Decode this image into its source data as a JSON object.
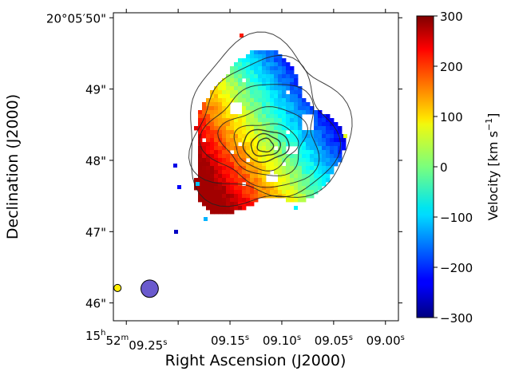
{
  "chart_data": {
    "type": "heatmap",
    "title": "",
    "xlabel": "Right Ascension (J2000)",
    "ylabel": "Declination (J2000)",
    "x_tick_labels": [
      {
        "value": 9.25,
        "main": "15",
        "sup1": "h",
        "mid": "52",
        "sup2": "m",
        "tail": "09.25",
        "sup3": "s"
      },
      {
        "value": 9.15,
        "main": "",
        "sup1": "",
        "mid": "",
        "sup2": "",
        "tail": "09.15",
        "sup3": "s"
      },
      {
        "value": 9.1,
        "main": "",
        "sup1": "",
        "mid": "",
        "sup2": "",
        "tail": "09.10",
        "sup3": "s"
      },
      {
        "value": 9.05,
        "main": "",
        "sup1": "",
        "mid": "",
        "sup2": "",
        "tail": "09.05",
        "sup3": "s"
      },
      {
        "value": 9.0,
        "main": "",
        "sup1": "",
        "mid": "",
        "sup2": "",
        "tail": "09.00",
        "sup3": "s"
      }
    ],
    "x_minor_ticks": [
      9.2
    ],
    "y_tick_labels": [
      {
        "value": 50,
        "text": "20°05′50\""
      },
      {
        "value": 49,
        "text": "49\""
      },
      {
        "value": 48,
        "text": "48\""
      },
      {
        "value": 47,
        "text": "47\""
      },
      {
        "value": 46,
        "text": "46\""
      }
    ],
    "xlim": [
      9.2625,
      8.9875
    ],
    "ylim": [
      45.75,
      50.07
    ],
    "colorbar": {
      "label_main": "Velocity [km s",
      "label_sup": "−1",
      "label_close": "]",
      "vmin": -300,
      "vmax": 300,
      "ticks": [
        {
          "value": 300,
          "text": "300"
        },
        {
          "value": 200,
          "text": "200"
        },
        {
          "value": 100,
          "text": "100"
        },
        {
          "value": 0,
          "text": "0"
        },
        {
          "value": -100,
          "text": "−100"
        },
        {
          "value": -200,
          "text": "−200"
        },
        {
          "value": -300,
          "text": "−300"
        }
      ],
      "colormap": "jet"
    },
    "beams": [
      {
        "name": "yellow-beam",
        "ra": 9.2585,
        "dec": 46.21,
        "ra_radius": 0.0035,
        "color": "#ffee00"
      },
      {
        "name": "purple-beam",
        "ra": 9.2275,
        "dec": 46.2,
        "ra_radius": 0.0084,
        "color": "#6a5acd"
      }
    ],
    "velocity_field": {
      "center": {
        "ra": 9.114,
        "dec": 48.22
      },
      "peak_velocity": 280,
      "gradient_angle_deg": 32
    },
    "contours": {
      "color": "#222222",
      "center": {
        "ra": 9.116,
        "dec": 48.21
      }
    }
  }
}
